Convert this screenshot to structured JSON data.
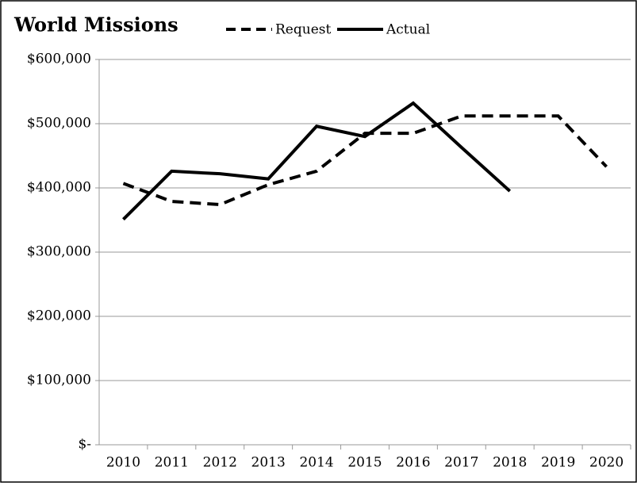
{
  "chart_data": {
    "type": "line",
    "title": "World Missions",
    "categories": [
      "2010",
      "2011",
      "2012",
      "2013",
      "2014",
      "2015",
      "2016",
      "2017",
      "2018",
      "2019",
      "2020"
    ],
    "series": [
      {
        "name": "Request",
        "color": "#000000",
        "dash": true,
        "values": [
          407000,
          379000,
          374000,
          405000,
          426000,
          485000,
          485000,
          512000,
          512000,
          512000,
          433000
        ]
      },
      {
        "name": "Actual",
        "color": "#000000",
        "dash": false,
        "values": [
          351000,
          426000,
          422000,
          414000,
          496000,
          480000,
          532000,
          463000,
          395000,
          null,
          null
        ]
      }
    ],
    "ylim": [
      0,
      600000
    ],
    "yticks": [
      {
        "value": 0,
        "label": "$-"
      },
      {
        "value": 100000,
        "label": "$100,000"
      },
      {
        "value": 200000,
        "label": "$200,000"
      },
      {
        "value": 300000,
        "label": "$300,000"
      },
      {
        "value": 400000,
        "label": "$400,000"
      },
      {
        "value": 500000,
        "label": "$500,000"
      },
      {
        "value": 600000,
        "label": "$600,000"
      }
    ],
    "grid": true
  }
}
